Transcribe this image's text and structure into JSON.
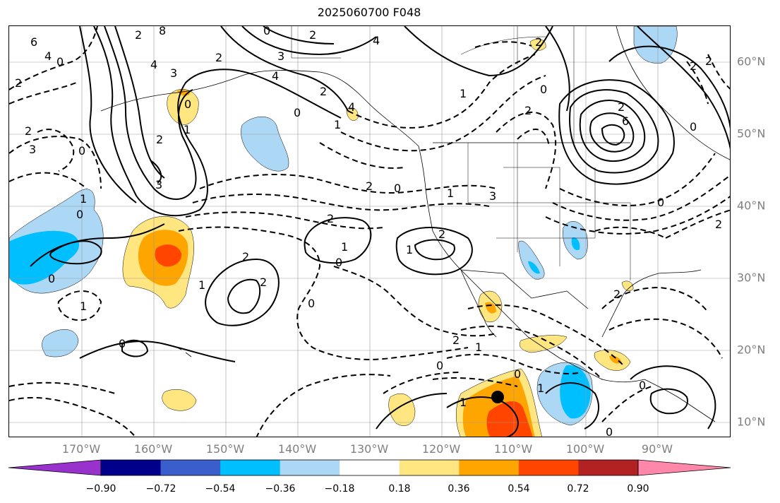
{
  "title": "2025060700 F048",
  "lon_labels": [
    "170°W",
    "160°W",
    "150°W",
    "140°W",
    "130°W",
    "120°W",
    "110°W",
    "100°W",
    "90°W"
  ],
  "lat_labels": [
    "60°N",
    "50°N",
    "40°N",
    "30°N",
    "20°N",
    "10°N"
  ],
  "colorbar": {
    "colors": [
      "#9932cc",
      "#00008b",
      "#3a5fcd",
      "#00bfff",
      "#add8f5",
      "#ffffff",
      "#ffe680",
      "#ffa500",
      "#ff4500",
      "#b22222",
      "#ff88aa"
    ],
    "ticks": [
      "−0.90",
      "−0.72",
      "−0.54",
      "−0.36",
      "−0.18",
      "0.18",
      "0.36",
      "0.54",
      "0.72",
      "0.90"
    ],
    "extend": "both"
  },
  "contour_labels": [
    "6",
    "4",
    "2",
    "0",
    "2",
    "4",
    "8",
    "2",
    "0",
    "3",
    "4",
    "3",
    "4",
    "2",
    "0",
    "0",
    "2",
    "4",
    "2",
    "3",
    "1",
    "0",
    "1",
    "2",
    "3",
    "0",
    "0",
    "2",
    "1",
    "2",
    "1",
    "0",
    "2",
    "0",
    "1",
    "0",
    "1",
    "2",
    "1",
    "3",
    "2",
    "0",
    "1",
    "1",
    "2",
    "1",
    "0",
    "1",
    "2",
    "0",
    "1",
    "0",
    "2",
    "6",
    "2",
    "0",
    "2",
    "2",
    "2",
    "0",
    "0",
    "2",
    "0"
  ],
  "marker": {
    "type": "filled-circle",
    "color": "#000000"
  }
}
